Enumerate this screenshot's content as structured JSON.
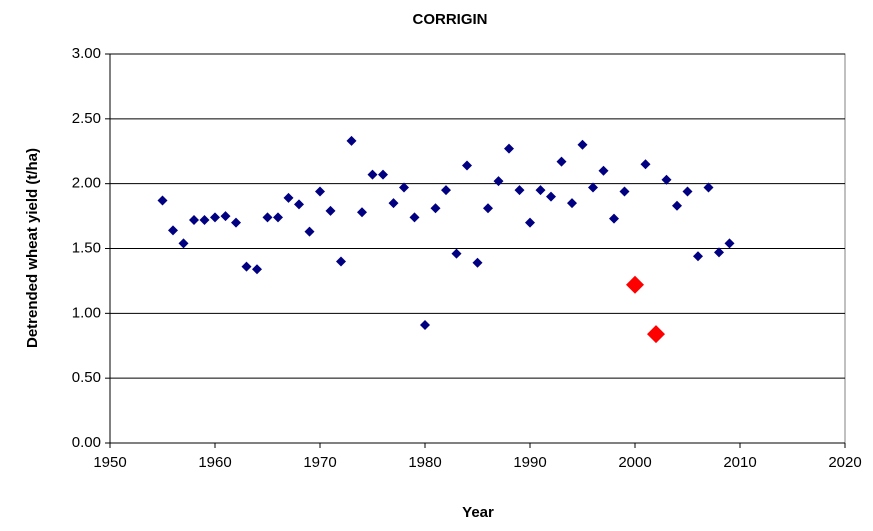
{
  "chart_data": {
    "type": "scatter",
    "title": "CORRIGIN",
    "x_label": "Year",
    "y_label": "Detrended wheat yield (t/ha)",
    "xlim": [
      1950,
      2020
    ],
    "xticks": [
      1950,
      1960,
      1970,
      1980,
      1990,
      2000,
      2010,
      2020
    ],
    "ylim": [
      0,
      3
    ],
    "yticks": [
      {
        "value": 0,
        "label": "0.00"
      },
      {
        "value": 0.5,
        "label": "0.50"
      },
      {
        "value": 1,
        "label": "1.00"
      },
      {
        "value": 1.5,
        "label": "1.50"
      },
      {
        "value": 2,
        "label": "2.00"
      },
      {
        "value": 2.5,
        "label": "2.50"
      },
      {
        "value": 3,
        "label": "3.00"
      }
    ],
    "grid": true,
    "series": [
      {
        "color": "#000080",
        "marker": "diamond",
        "marker_size": 5,
        "x": [
          1955,
          1956,
          1957,
          1958,
          1959,
          1960,
          1961,
          1962,
          1963,
          1964,
          1965,
          1966,
          1967,
          1968,
          1969,
          1970,
          1971,
          1972,
          1973,
          1974,
          1975,
          1976,
          1977,
          1978,
          1979,
          1980,
          1981,
          1982,
          1983,
          1984,
          1985,
          1986,
          1987,
          1988,
          1989,
          1990,
          1991,
          1992,
          1993,
          1994,
          1995,
          1996,
          1997,
          1998,
          1999,
          2001,
          2003,
          2004,
          2005,
          2006,
          2007,
          2008,
          2009
        ],
        "values": [
          1.87,
          1.64,
          1.54,
          1.72,
          1.72,
          1.74,
          1.75,
          1.7,
          1.36,
          1.34,
          1.74,
          1.74,
          1.89,
          1.84,
          1.63,
          1.94,
          1.79,
          1.4,
          2.33,
          1.78,
          2.07,
          2.07,
          1.85,
          1.97,
          1.74,
          0.91,
          1.81,
          1.95,
          1.46,
          2.14,
          1.39,
          1.81,
          2.02,
          2.27,
          1.95,
          1.7,
          1.95,
          1.9,
          2.17,
          1.85,
          2.3,
          1.97,
          2.1,
          1.73,
          1.94,
          2.15,
          2.03,
          1.83,
          1.94,
          1.44,
          1.97,
          1.47,
          1.54
        ]
      },
      {
        "color": "#ff0000",
        "marker": "diamond",
        "marker_size": 9,
        "x": [
          2000,
          2002
        ],
        "values": [
          1.22,
          0.84
        ]
      }
    ]
  }
}
